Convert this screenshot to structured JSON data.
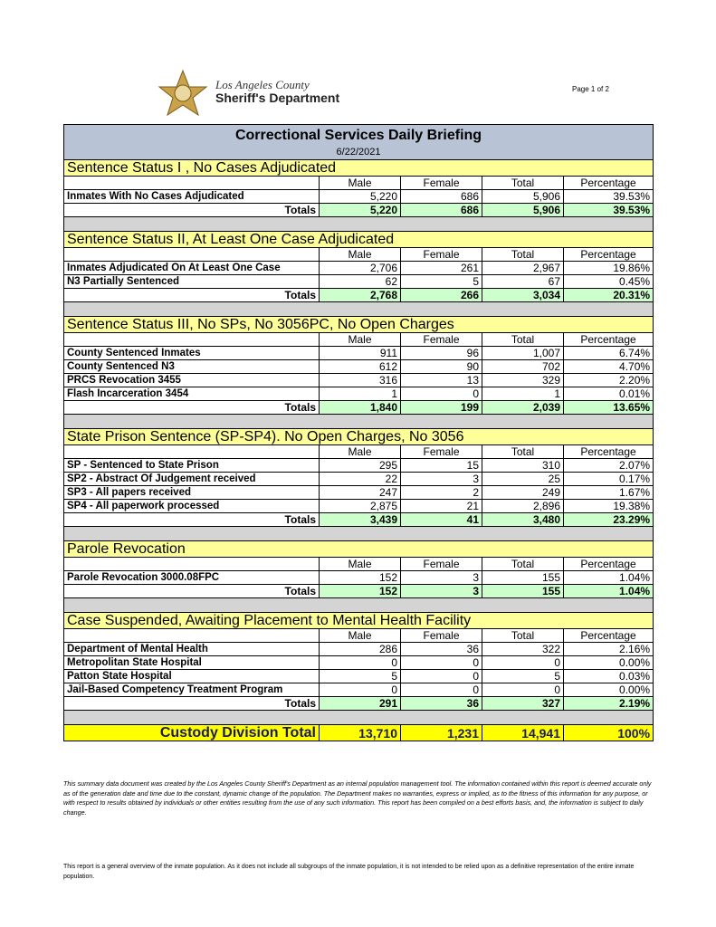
{
  "header": {
    "agency_line1": "Los Angeles County",
    "agency_line2": "Sheriff's Department",
    "page": "Page 1 of 2"
  },
  "report": {
    "title": "Correctional Services Daily Briefing",
    "date": "6/22/2021"
  },
  "columns": [
    "Male",
    "Female",
    "Total",
    "Percentage"
  ],
  "sections": [
    {
      "title": "Sentence Status I , No Cases Adjudicated",
      "rows": [
        {
          "label": "Inmates With No Cases Adjudicated",
          "values": [
            "5,220",
            "686",
            "5,906",
            "39.53%"
          ]
        }
      ],
      "totals": {
        "label": "Totals",
        "values": [
          "5,220",
          "686",
          "5,906",
          "39.53%"
        ]
      }
    },
    {
      "title": "Sentence Status II, At Least One Case Adjudicated",
      "rows": [
        {
          "label": "Inmates Adjudicated On At Least One Case",
          "values": [
            "2,706",
            "261",
            "2,967",
            "19.86%"
          ]
        },
        {
          "label": "N3 Partially Sentenced",
          "values": [
            "62",
            "5",
            "67",
            "0.45%"
          ]
        }
      ],
      "totals": {
        "label": "Totals",
        "values": [
          "2,768",
          "266",
          "3,034",
          "20.31%"
        ]
      }
    },
    {
      "title": "Sentence Status III, No SPs, No 3056PC, No Open Charges",
      "rows": [
        {
          "label": "County Sentenced Inmates",
          "values": [
            "911",
            "96",
            "1,007",
            "6.74%"
          ]
        },
        {
          "label": "County Sentenced N3",
          "values": [
            "612",
            "90",
            "702",
            "4.70%"
          ]
        },
        {
          "label": "PRCS Revocation 3455",
          "values": [
            "316",
            "13",
            "329",
            "2.20%"
          ]
        },
        {
          "label": "Flash Incarceration 3454",
          "values": [
            "1",
            "0",
            "1",
            "0.01%"
          ]
        }
      ],
      "totals": {
        "label": "Totals",
        "values": [
          "1,840",
          "199",
          "2,039",
          "13.65%"
        ]
      }
    },
    {
      "title": "State Prison Sentence (SP-SP4). No Open Charges, No 3056",
      "rows": [
        {
          "label": "SP - Sentenced to State Prison",
          "values": [
            "295",
            "15",
            "310",
            "2.07%"
          ]
        },
        {
          "label": "SP2 - Abstract Of Judgement received",
          "values": [
            "22",
            "3",
            "25",
            "0.17%"
          ]
        },
        {
          "label": "SP3 - All papers received",
          "values": [
            "247",
            "2",
            "249",
            "1.67%"
          ]
        },
        {
          "label": "SP4 - All paperwork processed",
          "values": [
            "2,875",
            "21",
            "2,896",
            "19.38%"
          ]
        }
      ],
      "totals": {
        "label": "Totals",
        "values": [
          "3,439",
          "41",
          "3,480",
          "23.29%"
        ]
      }
    },
    {
      "title": "Parole Revocation",
      "rows": [
        {
          "label": "Parole Revocation 3000.08FPC",
          "values": [
            "152",
            "3",
            "155",
            "1.04%"
          ]
        }
      ],
      "totals": {
        "label": "Totals",
        "values": [
          "152",
          "3",
          "155",
          "1.04%"
        ]
      }
    },
    {
      "title": "Case Suspended, Awaiting Placement to Mental Health Facility",
      "rows": [
        {
          "label": "Department of Mental Health",
          "values": [
            "286",
            "36",
            "322",
            "2.16%"
          ]
        },
        {
          "label": "Metropolitan State Hospital",
          "values": [
            "0",
            "0",
            "0",
            "0.00%"
          ]
        },
        {
          "label": "Patton State Hospital",
          "values": [
            "5",
            "0",
            "5",
            "0.03%"
          ]
        },
        {
          "label": "Jail-Based Competency Treatment Program",
          "values": [
            "0",
            "0",
            "0",
            "0.00%"
          ]
        }
      ],
      "totals": {
        "label": "Totals",
        "values": [
          "291",
          "36",
          "327",
          "2.19%"
        ]
      }
    }
  ],
  "grand_total": {
    "label": "Custody Division Total",
    "values": [
      "13,710",
      "1,231",
      "14,941",
      "100%"
    ]
  },
  "disclaimer": "This summary data document was created by the Los Angeles County Sheriff's Department as an internal population management tool.  The information contained within this report is deemed accurate only as of the generation date and time due to the constant, dynamic change of the population.  The Department makes no warranties, express or implied, as to the fitness of this information for any purpose, or with respect to results obtained by individuals or other entities resulting from the use of any such information.  This report has been compiled on a best efforts basis, and, the information is subject to daily change.",
  "footer": "This report is a general overview of the inmate population.  As it does not include all subgroups of the inmate population, it is not intended to be relied upon as a definitive representation of the entire inmate population."
}
